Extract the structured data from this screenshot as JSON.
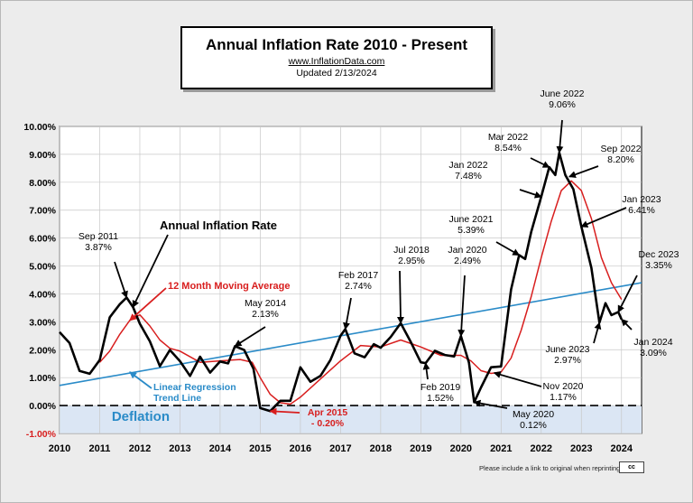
{
  "header": {
    "title": "Annual  Inflation Rate 2010 - Present",
    "website": "www.InflationData.com",
    "updated": "Updated   2/13/2024"
  },
  "footer": {
    "reprint_note": "Please include a link to original when reprinting",
    "badge": "cc"
  },
  "colors": {
    "inflation": "#000000",
    "moving_avg": "#d81e1e",
    "trend": "#2a8bc8",
    "deflation_fill": "#dbe6f4",
    "annotation_red": "#d81e1e",
    "annotation_blue": "#2a8bc8"
  },
  "chart_data": {
    "type": "line",
    "xlim": [
      2010,
      2024.5
    ],
    "ylim": [
      -1,
      10
    ],
    "y_ticks": [
      "-1.00%",
      "0.00%",
      "1.00%",
      "2.00%",
      "3.00%",
      "4.00%",
      "5.00%",
      "6.00%",
      "7.00%",
      "8.00%",
      "9.00%",
      "10.00%"
    ],
    "x_ticks": [
      "2010",
      "2011",
      "2012",
      "2013",
      "2014",
      "2015",
      "2016",
      "2017",
      "2018",
      "2019",
      "2020",
      "2021",
      "2022",
      "2023",
      "2024"
    ],
    "grid": true,
    "deflation_label": "Deflation",
    "series": [
      {
        "name": "Annual Inflation Rate",
        "x": [
          2010.0,
          2010.25,
          2010.5,
          2010.75,
          2011.0,
          2011.25,
          2011.5,
          2011.67,
          2011.83,
          2012.0,
          2012.25,
          2012.5,
          2012.75,
          2013.0,
          2013.25,
          2013.5,
          2013.75,
          2014.0,
          2014.2,
          2014.37,
          2014.6,
          2014.83,
          2015.0,
          2015.25,
          2015.5,
          2015.75,
          2016.0,
          2016.25,
          2016.5,
          2016.75,
          2017.0,
          2017.12,
          2017.35,
          2017.6,
          2017.83,
          2018.0,
          2018.25,
          2018.5,
          2018.75,
          2019.0,
          2019.12,
          2019.35,
          2019.6,
          2019.83,
          2020.0,
          2020.2,
          2020.33,
          2020.5,
          2020.75,
          2021.0,
          2021.25,
          2021.45,
          2021.6,
          2021.75,
          2022.0,
          2022.2,
          2022.35,
          2022.45,
          2022.6,
          2022.8,
          2023.0,
          2023.25,
          2023.45,
          2023.6,
          2023.75,
          2023.92,
          2024.0
        ],
        "values": [
          2.63,
          2.24,
          1.24,
          1.14,
          1.63,
          3.16,
          3.63,
          3.87,
          3.53,
          2.93,
          2.3,
          1.41,
          1.99,
          1.59,
          1.06,
          1.75,
          1.18,
          1.58,
          1.51,
          2.13,
          1.99,
          1.32,
          -0.09,
          -0.2,
          0.17,
          0.17,
          1.37,
          0.85,
          1.06,
          1.64,
          2.5,
          2.74,
          1.87,
          1.73,
          2.2,
          2.07,
          2.46,
          2.95,
          2.28,
          1.55,
          1.52,
          1.96,
          1.81,
          1.76,
          2.49,
          1.54,
          0.12,
          0.65,
          1.37,
          1.4,
          4.16,
          5.39,
          5.25,
          6.22,
          7.48,
          8.54,
          8.26,
          9.06,
          8.26,
          7.75,
          6.41,
          4.93,
          2.97,
          3.67,
          3.24,
          3.35,
          3.09
        ]
      },
      {
        "name": "12 Month Moving Average",
        "x": [
          2011.0,
          2011.25,
          2011.5,
          2011.75,
          2012.0,
          2012.25,
          2012.5,
          2012.75,
          2013.0,
          2013.5,
          2014.0,
          2014.5,
          2014.8,
          2015.0,
          2015.25,
          2015.5,
          2015.75,
          2016.0,
          2016.5,
          2017.0,
          2017.5,
          2018.0,
          2018.5,
          2019.0,
          2019.5,
          2020.0,
          2020.25,
          2020.5,
          2020.75,
          2021.0,
          2021.25,
          2021.5,
          2021.75,
          2022.0,
          2022.25,
          2022.5,
          2022.75,
          2023.0,
          2023.25,
          2023.5,
          2023.75,
          2024.0
        ],
        "values": [
          1.55,
          1.95,
          2.55,
          3.05,
          3.25,
          2.85,
          2.35,
          2.05,
          1.95,
          1.55,
          1.6,
          1.65,
          1.55,
          1.0,
          0.4,
          0.1,
          0.05,
          0.3,
          0.95,
          1.6,
          2.15,
          2.1,
          2.35,
          2.1,
          1.8,
          1.8,
          1.6,
          1.25,
          1.15,
          1.2,
          1.7,
          2.7,
          3.9,
          5.3,
          6.6,
          7.7,
          8.05,
          7.7,
          6.7,
          5.3,
          4.4,
          3.8
        ]
      },
      {
        "name": "Linear Regression Trend Line",
        "x": [
          2010,
          2024.5
        ],
        "values": [
          0.72,
          4.4
        ]
      }
    ],
    "annotations": [
      {
        "text": [
          "Sep 2011",
          "3.87%"
        ],
        "color": "black",
        "x": 2011.67,
        "y": 3.87
      },
      {
        "text": [
          "May 2014",
          "2.13%"
        ],
        "color": "black",
        "x": 2014.37,
        "y": 2.13
      },
      {
        "text": [
          "Apr 2015",
          "- 0.20%"
        ],
        "color": "red",
        "x": 2015.25,
        "y": -0.2
      },
      {
        "text": [
          "Feb 2017",
          "2.74%"
        ],
        "color": "black",
        "x": 2017.12,
        "y": 2.74
      },
      {
        "text": [
          "Jul 2018",
          "2.95%"
        ],
        "color": "black",
        "x": 2018.5,
        "y": 2.95
      },
      {
        "text": [
          "Feb 2019",
          "1.52%"
        ],
        "color": "black",
        "x": 2019.12,
        "y": 1.52
      },
      {
        "text": [
          "Jan 2020",
          "2.49%"
        ],
        "color": "black",
        "x": 2020.0,
        "y": 2.49
      },
      {
        "text": [
          "May 2020",
          "0.12%"
        ],
        "color": "black",
        "x": 2020.33,
        "y": 0.12
      },
      {
        "text": [
          "Nov 2020",
          "1.17%"
        ],
        "color": "black",
        "x": 2020.83,
        "y": 1.17
      },
      {
        "text": [
          "June 2021",
          "5.39%"
        ],
        "color": "black",
        "x": 2021.45,
        "y": 5.39
      },
      {
        "text": [
          "Jan 2022",
          "7.48%"
        ],
        "color": "black",
        "x": 2022.0,
        "y": 7.48
      },
      {
        "text": [
          "Mar 2022",
          "8.54%"
        ],
        "color": "black",
        "x": 2022.2,
        "y": 8.54
      },
      {
        "text": [
          "June 2022",
          "9.06%"
        ],
        "color": "black",
        "x": 2022.45,
        "y": 9.06
      },
      {
        "text": [
          "Sep 2022",
          "8.20%"
        ],
        "color": "black",
        "x": 2022.7,
        "y": 8.2
      },
      {
        "text": [
          "Jan 2023",
          "6.41%"
        ],
        "color": "black",
        "x": 2023.0,
        "y": 6.41
      },
      {
        "text": [
          "June 2023",
          "2.97%"
        ],
        "color": "black",
        "x": 2023.45,
        "y": 2.97
      },
      {
        "text": [
          "Dec 2023",
          "3.35%"
        ],
        "color": "black",
        "x": 2023.92,
        "y": 3.35
      },
      {
        "text": [
          "Jan 2024",
          "3.09%"
        ],
        "color": "black",
        "x": 2024.0,
        "y": 3.09
      },
      {
        "text": [
          "Annual Inflation Rate"
        ],
        "color": "black",
        "x": 2011.83,
        "y": 3.53
      },
      {
        "text": [
          "12 Month Moving Average"
        ],
        "color": "red",
        "x": 2011.75,
        "y": 3.05
      },
      {
        "text": [
          "Linear Regression",
          "Trend Line"
        ],
        "color": "blue",
        "x": 2011.75,
        "y": 1.2
      }
    ]
  }
}
